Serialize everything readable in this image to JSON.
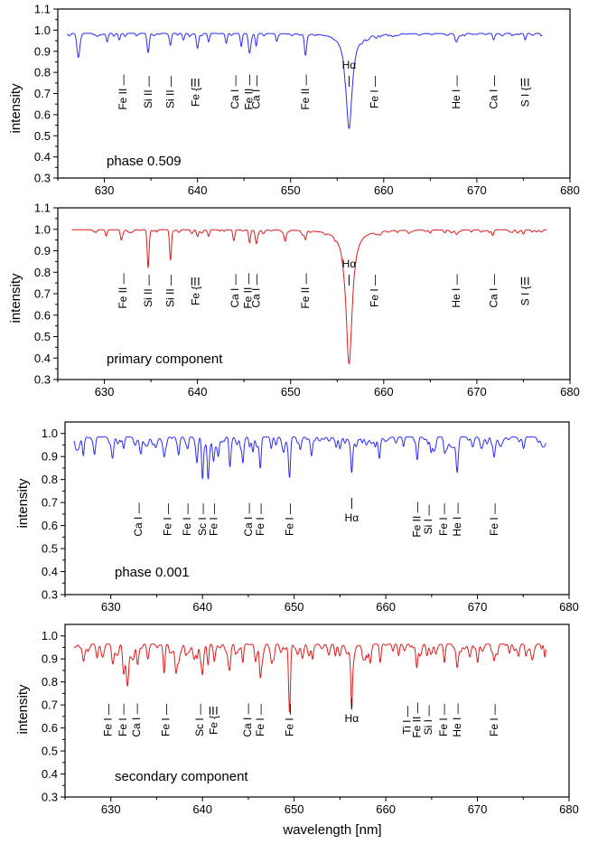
{
  "figure": {
    "xlabel": "wavelength [nm]"
  },
  "chart_data": [
    {
      "type": "line",
      "ylabel": "intensity",
      "annotation": "phase 0.509",
      "color": "#2a2aff",
      "xlim": [
        625,
        680
      ],
      "ylim": [
        0.3,
        1.1
      ],
      "xticks": [
        "630",
        "640",
        "650",
        "660",
        "670",
        "680"
      ],
      "yticks": [
        "0.3",
        "0.4",
        "0.5",
        "0.6",
        "0.7",
        "0.8",
        "0.9",
        "1.0",
        "1.1"
      ],
      "continuum": 0.985,
      "x_range": [
        626,
        677
      ],
      "features": [
        {
          "x": 627.2,
          "depth": 0.11,
          "width": 0.15
        },
        {
          "x": 630.3,
          "depth": 0.04,
          "width": 0.1
        },
        {
          "x": 631.6,
          "depth": 0.03,
          "width": 0.1
        },
        {
          "x": 634.7,
          "depth": 0.09,
          "width": 0.12
        },
        {
          "x": 637.1,
          "depth": 0.05,
          "width": 0.1
        },
        {
          "x": 638.5,
          "depth": 0.03,
          "width": 0.1
        },
        {
          "x": 640.0,
          "depth": 0.07,
          "width": 0.12
        },
        {
          "x": 641.2,
          "depth": 0.04,
          "width": 0.1
        },
        {
          "x": 643.1,
          "depth": 0.04,
          "width": 0.1
        },
        {
          "x": 644.7,
          "depth": 0.06,
          "width": 0.1
        },
        {
          "x": 645.6,
          "depth": 0.07,
          "width": 0.12
        },
        {
          "x": 646.3,
          "depth": 0.06,
          "width": 0.1
        },
        {
          "x": 648.5,
          "depth": 0.03,
          "width": 0.1
        },
        {
          "x": 651.6,
          "depth": 0.1,
          "width": 0.12
        },
        {
          "x": 656.28,
          "depth": 0.45,
          "width": 0.9
        },
        {
          "x": 667.8,
          "depth": 0.04,
          "width": 0.15
        },
        {
          "x": 671.8,
          "depth": 0.03,
          "width": 0.1
        },
        {
          "x": 675.2,
          "depth": 0.03,
          "width": 0.1
        }
      ],
      "line_labels": [
        {
          "x": 632.0,
          "text": "Fe II —"
        },
        {
          "x": 634.7,
          "text": "Si II —"
        },
        {
          "x": 637.1,
          "text": "Si II —"
        },
        {
          "x": 639.8,
          "text": "Fe {☰"
        },
        {
          "x": 644.0,
          "text": "Ca I —"
        },
        {
          "x": 645.5,
          "text": "Fe II —"
        },
        {
          "x": 646.3,
          "text": "Ca I —"
        },
        {
          "x": 651.6,
          "text": "Fe II —"
        },
        {
          "x": 659.0,
          "text": "Fe I —"
        },
        {
          "x": 667.8,
          "text": "He I —"
        },
        {
          "x": 671.8,
          "text": "Ca I —"
        },
        {
          "x": 675.2,
          "text": "S I {☰"
        }
      ],
      "halpha": {
        "x": 656.28,
        "text": "Hα"
      }
    },
    {
      "type": "line",
      "ylabel": "intensity",
      "annotation": "primary component",
      "color": "#e21a1a",
      "xlim": [
        625,
        680
      ],
      "ylim": [
        0.3,
        1.1
      ],
      "xticks": [
        "630",
        "640",
        "650",
        "660",
        "670",
        "680"
      ],
      "yticks": [
        "0.3",
        "0.4",
        "0.5",
        "0.6",
        "0.7",
        "0.8",
        "0.9",
        "1.0",
        "1.1"
      ],
      "continuum": 0.998,
      "x_range": [
        626.5,
        677.5
      ],
      "features": [
        {
          "x": 630.2,
          "depth": 0.03,
          "width": 0.1
        },
        {
          "x": 631.8,
          "depth": 0.04,
          "width": 0.1
        },
        {
          "x": 634.7,
          "depth": 0.17,
          "width": 0.1
        },
        {
          "x": 637.1,
          "depth": 0.14,
          "width": 0.1
        },
        {
          "x": 640.0,
          "depth": 0.03,
          "width": 0.1
        },
        {
          "x": 641.2,
          "depth": 0.03,
          "width": 0.1
        },
        {
          "x": 643.9,
          "depth": 0.05,
          "width": 0.1
        },
        {
          "x": 645.6,
          "depth": 0.06,
          "width": 0.1
        },
        {
          "x": 646.3,
          "depth": 0.05,
          "width": 0.1
        },
        {
          "x": 649.4,
          "depth": 0.04,
          "width": 0.1
        },
        {
          "x": 651.6,
          "depth": 0.04,
          "width": 0.1
        },
        {
          "x": 656.28,
          "depth": 0.62,
          "width": 0.9
        },
        {
          "x": 667.8,
          "depth": 0.02,
          "width": 0.12
        },
        {
          "x": 671.7,
          "depth": 0.02,
          "width": 0.1
        },
        {
          "x": 675.0,
          "depth": 0.02,
          "width": 0.1
        }
      ],
      "line_labels": [
        {
          "x": 632.0,
          "text": "Fe II —"
        },
        {
          "x": 634.7,
          "text": "Si II —"
        },
        {
          "x": 637.1,
          "text": "Si II —"
        },
        {
          "x": 639.8,
          "text": "Fe {☰"
        },
        {
          "x": 644.0,
          "text": "Ca I —"
        },
        {
          "x": 645.4,
          "text": "Fe II —"
        },
        {
          "x": 646.3,
          "text": "Ca I —"
        },
        {
          "x": 651.6,
          "text": "Fe II —"
        },
        {
          "x": 659.0,
          "text": "Fe I —"
        },
        {
          "x": 667.8,
          "text": "He I —"
        },
        {
          "x": 671.8,
          "text": "Ca I —"
        },
        {
          "x": 675.2,
          "text": "S I {☰"
        }
      ],
      "halpha": {
        "x": 656.28,
        "text": "Hα"
      }
    },
    {
      "type": "line",
      "ylabel": "intensity",
      "annotation": "phase 0.001",
      "color": "#2a2aff",
      "xlim": [
        625,
        680
      ],
      "ylim": [
        0.3,
        1.05
      ],
      "xticks": [
        "630",
        "640",
        "650",
        "660",
        "670",
        "680"
      ],
      "yticks": [
        "0.3",
        "0.4",
        "0.5",
        "0.6",
        "0.7",
        "0.8",
        "0.9",
        "1.0"
      ],
      "continuum": 0.985,
      "x_range": [
        626,
        677.5
      ],
      "features": [
        {
          "x": 627.0,
          "depth": 0.05,
          "width": 0.12
        },
        {
          "x": 628.2,
          "depth": 0.06,
          "width": 0.12
        },
        {
          "x": 630.2,
          "depth": 0.07,
          "width": 0.12
        },
        {
          "x": 631.4,
          "depth": 0.05,
          "width": 0.1
        },
        {
          "x": 633.3,
          "depth": 0.06,
          "width": 0.1
        },
        {
          "x": 635.8,
          "depth": 0.06,
          "width": 0.1
        },
        {
          "x": 637.4,
          "depth": 0.05,
          "width": 0.1
        },
        {
          "x": 638.4,
          "depth": 0.04,
          "width": 0.1
        },
        {
          "x": 639.4,
          "depth": 0.08,
          "width": 0.1
        },
        {
          "x": 640.0,
          "depth": 0.18,
          "width": 0.1
        },
        {
          "x": 640.6,
          "depth": 0.16,
          "width": 0.1
        },
        {
          "x": 641.2,
          "depth": 0.09,
          "width": 0.1
        },
        {
          "x": 643.0,
          "depth": 0.08,
          "width": 0.1
        },
        {
          "x": 644.4,
          "depth": 0.1,
          "width": 0.1
        },
        {
          "x": 645.5,
          "depth": 0.06,
          "width": 0.1
        },
        {
          "x": 646.3,
          "depth": 0.12,
          "width": 0.1
        },
        {
          "x": 647.5,
          "depth": 0.05,
          "width": 0.1
        },
        {
          "x": 649.5,
          "depth": 0.15,
          "width": 0.1
        },
        {
          "x": 651.9,
          "depth": 0.06,
          "width": 0.1
        },
        {
          "x": 654.6,
          "depth": 0.04,
          "width": 0.1
        },
        {
          "x": 656.28,
          "depth": 0.13,
          "width": 0.3
        },
        {
          "x": 659.3,
          "depth": 0.06,
          "width": 0.1
        },
        {
          "x": 663.4,
          "depth": 0.05,
          "width": 0.1
        },
        {
          "x": 664.9,
          "depth": 0.04,
          "width": 0.1
        },
        {
          "x": 666.4,
          "depth": 0.05,
          "width": 0.1
        },
        {
          "x": 667.8,
          "depth": 0.09,
          "width": 0.12
        },
        {
          "x": 671.8,
          "depth": 0.06,
          "width": 0.1
        },
        {
          "x": 675.1,
          "depth": 0.03,
          "width": 0.1
        }
      ],
      "line_labels": [
        {
          "x": 633.0,
          "text": "Ca I —"
        },
        {
          "x": 636.2,
          "text": "Fe I —"
        },
        {
          "x": 638.3,
          "text": "Fe I —"
        },
        {
          "x": 640.0,
          "text": "Sc I —"
        },
        {
          "x": 641.2,
          "text": "Fe I —"
        },
        {
          "x": 645.0,
          "text": "Ca I —"
        },
        {
          "x": 646.3,
          "text": "Fe I —"
        },
        {
          "x": 649.5,
          "text": "Fe I —"
        },
        {
          "x": 663.4,
          "text": "Fe II —"
        },
        {
          "x": 664.6,
          "text": "Si I —"
        },
        {
          "x": 666.3,
          "text": "Fe I —"
        },
        {
          "x": 667.8,
          "text": "He I —"
        },
        {
          "x": 671.8,
          "text": "Fe I —"
        }
      ],
      "halpha": {
        "x": 656.28,
        "text": "Hα"
      }
    },
    {
      "type": "line",
      "ylabel": "intensity",
      "annotation": "secondary component",
      "color": "#e21a1a",
      "xlim": [
        625,
        680
      ],
      "ylim": [
        0.3,
        1.05
      ],
      "xticks": [
        "630",
        "640",
        "650",
        "660",
        "670",
        "680"
      ],
      "yticks": [
        "0.3",
        "0.4",
        "0.5",
        "0.6",
        "0.7",
        "0.8",
        "0.9",
        "1.0"
      ],
      "continuum": 0.965,
      "x_range": [
        626,
        677.5
      ],
      "features": [
        {
          "x": 627.0,
          "depth": 0.06,
          "width": 0.12
        },
        {
          "x": 628.5,
          "depth": 0.06,
          "width": 0.12
        },
        {
          "x": 630.2,
          "depth": 0.08,
          "width": 0.12
        },
        {
          "x": 631.4,
          "depth": 0.1,
          "width": 0.12
        },
        {
          "x": 631.8,
          "depth": 0.15,
          "width": 0.12
        },
        {
          "x": 632.9,
          "depth": 0.06,
          "width": 0.1
        },
        {
          "x": 634.0,
          "depth": 0.05,
          "width": 0.1
        },
        {
          "x": 635.8,
          "depth": 0.07,
          "width": 0.1
        },
        {
          "x": 637.4,
          "depth": 0.05,
          "width": 0.1
        },
        {
          "x": 639.4,
          "depth": 0.06,
          "width": 0.1
        },
        {
          "x": 640.0,
          "depth": 0.11,
          "width": 0.1
        },
        {
          "x": 640.6,
          "depth": 0.09,
          "width": 0.1
        },
        {
          "x": 641.3,
          "depth": 0.07,
          "width": 0.1
        },
        {
          "x": 643.0,
          "depth": 0.06,
          "width": 0.1
        },
        {
          "x": 644.4,
          "depth": 0.08,
          "width": 0.1
        },
        {
          "x": 645.8,
          "depth": 0.06,
          "width": 0.1
        },
        {
          "x": 646.3,
          "depth": 0.1,
          "width": 0.1
        },
        {
          "x": 647.8,
          "depth": 0.05,
          "width": 0.1
        },
        {
          "x": 649.5,
          "depth": 0.26,
          "width": 0.1
        },
        {
          "x": 652.0,
          "depth": 0.06,
          "width": 0.1
        },
        {
          "x": 654.5,
          "depth": 0.05,
          "width": 0.1
        },
        {
          "x": 656.28,
          "depth": 0.27,
          "width": 0.25
        },
        {
          "x": 658.3,
          "depth": 0.05,
          "width": 0.1
        },
        {
          "x": 659.4,
          "depth": 0.08,
          "width": 0.1
        },
        {
          "x": 661.4,
          "depth": 0.05,
          "width": 0.1
        },
        {
          "x": 663.4,
          "depth": 0.07,
          "width": 0.1
        },
        {
          "x": 664.5,
          "depth": 0.05,
          "width": 0.1
        },
        {
          "x": 666.4,
          "depth": 0.08,
          "width": 0.1
        },
        {
          "x": 667.8,
          "depth": 0.1,
          "width": 0.12
        },
        {
          "x": 670.0,
          "depth": 0.04,
          "width": 0.1
        },
        {
          "x": 671.8,
          "depth": 0.06,
          "width": 0.1
        },
        {
          "x": 673.5,
          "depth": 0.04,
          "width": 0.1
        },
        {
          "x": 675.3,
          "depth": 0.05,
          "width": 0.1
        }
      ],
      "line_labels": [
        {
          "x": 629.7,
          "text": "Fe I —"
        },
        {
          "x": 631.3,
          "text": "Fe I —"
        },
        {
          "x": 632.8,
          "text": "Ca I —"
        },
        {
          "x": 636.0,
          "text": "Fe I —"
        },
        {
          "x": 639.7,
          "text": "Sc I —"
        },
        {
          "x": 641.2,
          "text": "Fe {☰"
        },
        {
          "x": 644.9,
          "text": "Ca I —"
        },
        {
          "x": 646.3,
          "text": "Fe I —"
        },
        {
          "x": 649.5,
          "text": "Fe I —"
        },
        {
          "x": 662.3,
          "text": "Ti I —"
        },
        {
          "x": 663.4,
          "text": "Fe II —"
        },
        {
          "x": 664.6,
          "text": "Si I —"
        },
        {
          "x": 666.3,
          "text": "Fe I —"
        },
        {
          "x": 667.8,
          "text": "He I —"
        },
        {
          "x": 671.8,
          "text": "Fe I —"
        }
      ],
      "halpha": {
        "x": 656.28,
        "text": "Hα"
      }
    }
  ]
}
